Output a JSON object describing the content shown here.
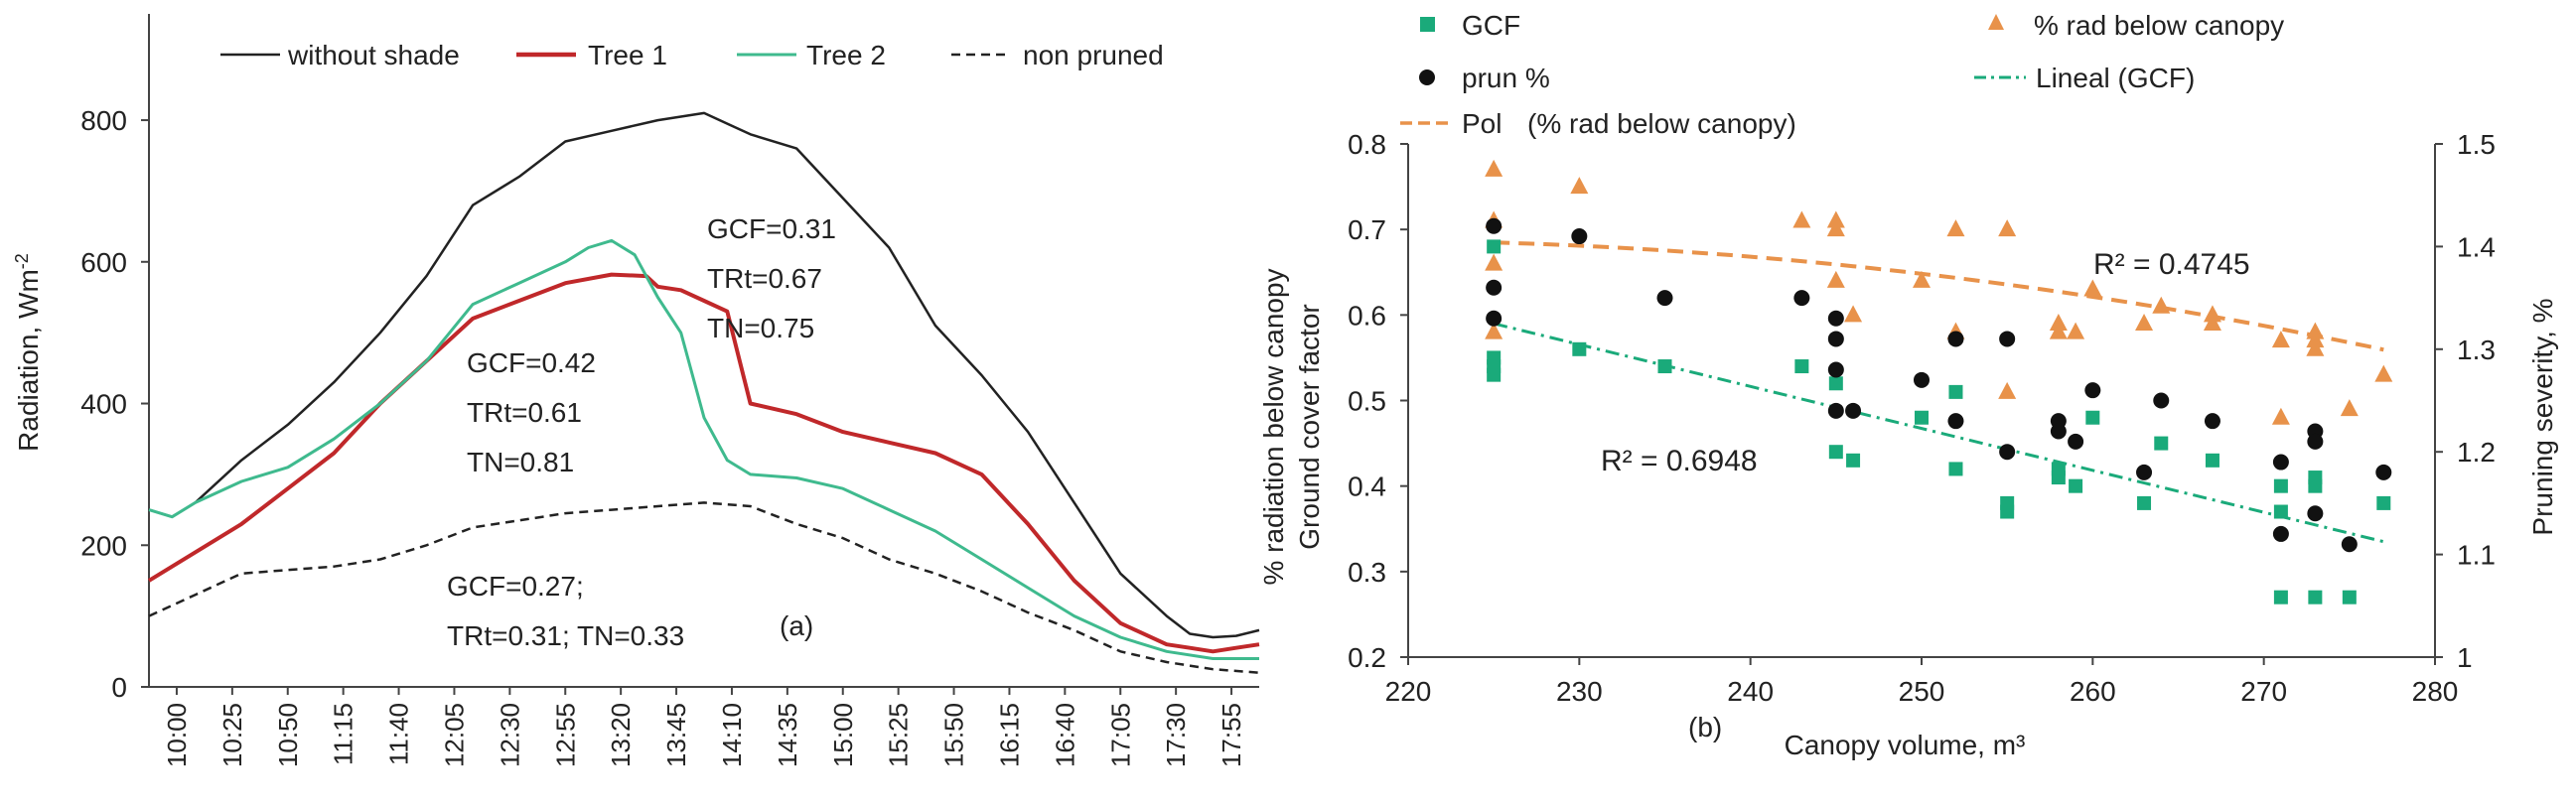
{
  "chart_data": [
    {
      "type": "line",
      "panel_label": "(a)",
      "ylabel": "Radiation, Wm",
      "ylabel_sup": "-2",
      "ylim": [
        0,
        950
      ],
      "y_ticks": [
        0,
        200,
        400,
        600,
        800
      ],
      "y_tick_labels": [
        "0",
        "200",
        "400",
        "600",
        "800"
      ],
      "x_tick_labels": [
        "10:00",
        "10:25",
        "10:50",
        "11:15",
        "11:40",
        "12:05",
        "12:30",
        "12:55",
        "13:20",
        "13:45",
        "14:10",
        "14:35",
        "15:00",
        "15:25",
        "15:50",
        "16:15",
        "16:40",
        "17:05",
        "17:30",
        "17:55"
      ],
      "xlim": [
        0,
        480
      ],
      "legend": [
        {
          "name": "without shade",
          "color": "#222222",
          "style": "solid"
        },
        {
          "name": "Tree 1",
          "color": "#c0282a",
          "style": "solid"
        },
        {
          "name": "Tree 2",
          "color": "#3fba8e",
          "style": "solid"
        },
        {
          "name": "non pruned",
          "color": "#222222",
          "style": "dashed"
        }
      ],
      "series": [
        {
          "name": "without shade",
          "color": "#222222",
          "width": 2.5,
          "dash": "",
          "x": [
            0,
            10,
            20,
            40,
            60,
            80,
            100,
            120,
            140,
            160,
            180,
            200,
            220,
            240,
            260,
            280,
            300,
            320,
            340,
            360,
            380,
            400,
            420,
            440,
            450,
            460,
            470,
            480
          ],
          "y": [
            250,
            240,
            260,
            320,
            370,
            430,
            500,
            580,
            680,
            720,
            770,
            785,
            800,
            810,
            780,
            760,
            690,
            620,
            510,
            440,
            360,
            260,
            160,
            100,
            75,
            70,
            72,
            80
          ]
        },
        {
          "name": "Tree 1",
          "color": "#c0282a",
          "width": 4,
          "dash": "",
          "x": [
            0,
            20,
            40,
            60,
            80,
            100,
            120,
            140,
            160,
            180,
            200,
            215,
            220,
            230,
            240,
            250,
            260,
            280,
            300,
            320,
            340,
            360,
            380,
            400,
            420,
            440,
            450,
            460,
            470,
            480
          ],
          "y": [
            150,
            190,
            230,
            280,
            330,
            400,
            460,
            520,
            545,
            570,
            582,
            580,
            565,
            560,
            545,
            530,
            400,
            385,
            360,
            345,
            330,
            300,
            230,
            150,
            90,
            60,
            55,
            50,
            55,
            60
          ]
        },
        {
          "name": "Tree 2",
          "color": "#3fba8e",
          "width": 3,
          "dash": "",
          "x": [
            0,
            10,
            20,
            40,
            60,
            80,
            100,
            120,
            140,
            160,
            180,
            190,
            200,
            210,
            220,
            230,
            240,
            250,
            260,
            280,
            300,
            320,
            340,
            360,
            380,
            400,
            420,
            440,
            460,
            480
          ],
          "y": [
            250,
            240,
            260,
            290,
            310,
            350,
            400,
            460,
            540,
            570,
            600,
            620,
            630,
            610,
            550,
            500,
            380,
            320,
            300,
            295,
            280,
            250,
            220,
            180,
            140,
            100,
            70,
            50,
            40,
            40
          ]
        },
        {
          "name": "non pruned",
          "color": "#222222",
          "width": 2.5,
          "dash": "9,6",
          "x": [
            0,
            20,
            40,
            60,
            80,
            100,
            120,
            140,
            160,
            180,
            200,
            220,
            240,
            260,
            280,
            300,
            320,
            340,
            360,
            380,
            400,
            420,
            440,
            460,
            480
          ],
          "y": [
            100,
            130,
            160,
            165,
            170,
            180,
            200,
            225,
            235,
            245,
            250,
            255,
            260,
            255,
            230,
            210,
            180,
            160,
            135,
            105,
            80,
            50,
            35,
            25,
            20
          ]
        }
      ],
      "annotations": [
        {
          "lines": [
            "GCF=0.31",
            "TRt=0.67",
            "TN=0.75"
          ]
        },
        {
          "lines": [
            "GCF=0.42",
            "TRt=0.61",
            "TN=0.81"
          ]
        },
        {
          "lines": [
            "GCF=0.27;",
            "TRt=0.31; TN=0.33"
          ]
        }
      ]
    },
    {
      "type": "scatter",
      "panel_label": "(b)",
      "xlabel": "Canopy volume, m³",
      "ylabel_left_1": "% radiation below canopy",
      "ylabel_left_2": "Ground cover factor",
      "ylabel_right": "Pruning severity, %",
      "xlim": [
        220,
        280
      ],
      "x_ticks": [
        220,
        230,
        240,
        250,
        260,
        270,
        280
      ],
      "x_tick_labels": [
        "220",
        "230",
        "240",
        "250",
        "260",
        "270",
        "280"
      ],
      "ylim_left": [
        0.2,
        0.8
      ],
      "y_left_ticks": [
        0.2,
        0.3,
        0.4,
        0.5,
        0.6,
        0.7,
        0.8
      ],
      "y_left_tick_labels": [
        "0.2",
        "0.3",
        "0.4",
        "0.5",
        "0.6",
        "0.7",
        "0.8"
      ],
      "ylim_right": [
        1.0,
        1.5
      ],
      "y_right_ticks": [
        1.0,
        1.1,
        1.2,
        1.3,
        1.4,
        1.5
      ],
      "y_right_tick_labels": [
        "1",
        "1.1",
        "1.2",
        "1.3",
        "1.4",
        "1.5"
      ],
      "legend": [
        {
          "name": "GCF",
          "marker": "square",
          "color": "#1aaa7a"
        },
        {
          "name": "% rad below canopy",
          "marker": "triangle",
          "color": "#e8924a"
        },
        {
          "name": "prun %",
          "marker": "circle",
          "color": "#111111"
        },
        {
          "name": "Lineal (GCF)",
          "marker": "dashdot",
          "color": "#1aaa7a"
        },
        {
          "name": "Pol",
          "marker": "dashed",
          "color": "#e8924a"
        },
        {
          "name": "(% rad below canopy)",
          "marker": "none",
          "color": "#222222"
        }
      ],
      "series": [
        {
          "name": "GCF",
          "marker": "square",
          "color": "#1aaa7a",
          "x": [
            225,
            225,
            225,
            225,
            230,
            235,
            243,
            245,
            245,
            246,
            250,
            252,
            252,
            255,
            255,
            258,
            258,
            259,
            260,
            263,
            264,
            267,
            271,
            271,
            271,
            273,
            273,
            273,
            275,
            277
          ],
          "y": [
            0.68,
            0.55,
            0.54,
            0.53,
            0.56,
            0.54,
            0.54,
            0.52,
            0.44,
            0.43,
            0.48,
            0.51,
            0.42,
            0.37,
            0.38,
            0.42,
            0.41,
            0.4,
            0.48,
            0.38,
            0.45,
            0.43,
            0.4,
            0.37,
            0.27,
            0.41,
            0.4,
            0.27,
            0.27,
            0.38
          ]
        },
        {
          "name": "% rad below canopy",
          "marker": "triangle",
          "color": "#e8924a",
          "x": [
            225,
            225,
            225,
            225,
            230,
            243,
            245,
            245,
            245,
            246,
            250,
            252,
            252,
            255,
            255,
            258,
            258,
            259,
            260,
            263,
            264,
            267,
            267,
            271,
            271,
            273,
            273,
            273,
            275,
            277
          ],
          "y": [
            0.77,
            0.71,
            0.66,
            0.58,
            0.75,
            0.71,
            0.71,
            0.7,
            0.64,
            0.6,
            0.64,
            0.7,
            0.58,
            0.7,
            0.51,
            0.59,
            0.58,
            0.58,
            0.63,
            0.59,
            0.61,
            0.6,
            0.59,
            0.57,
            0.48,
            0.58,
            0.57,
            0.56,
            0.49,
            0.53
          ]
        },
        {
          "name": "prun %",
          "marker": "circle",
          "color": "#111111",
          "x": [
            225,
            225,
            225,
            230,
            235,
            243,
            245,
            245,
            245,
            245,
            246,
            250,
            252,
            252,
            255,
            255,
            258,
            258,
            259,
            260,
            263,
            264,
            267,
            271,
            271,
            273,
            273,
            273,
            275,
            277
          ],
          "y": [
            1.42,
            1.36,
            1.33,
            1.41,
            1.35,
            1.35,
            1.33,
            1.31,
            1.28,
            1.24,
            1.24,
            1.27,
            1.31,
            1.23,
            1.31,
            1.2,
            1.23,
            1.22,
            1.21,
            1.26,
            1.18,
            1.25,
            1.23,
            1.19,
            1.12,
            1.22,
            1.21,
            1.14,
            1.11,
            1.18
          ]
        }
      ],
      "trendlines": [
        {
          "name": "Pol (% rad below canopy)",
          "style": "dashed",
          "color": "#e8924a",
          "x": [
            225,
            277
          ],
          "coef": [
            0.6848,
            -0.000585,
            -3.51e-05
          ],
          "x0": 225
        },
        {
          "name": "Lineal (GCF)",
          "style": "dashdot",
          "color": "#1aaa7a",
          "x": [
            225,
            277
          ],
          "y": [
            0.59,
            0.335
          ]
        }
      ],
      "r2_labels": [
        "R² = 0.4745",
        "R² = 0.6948"
      ]
    }
  ]
}
